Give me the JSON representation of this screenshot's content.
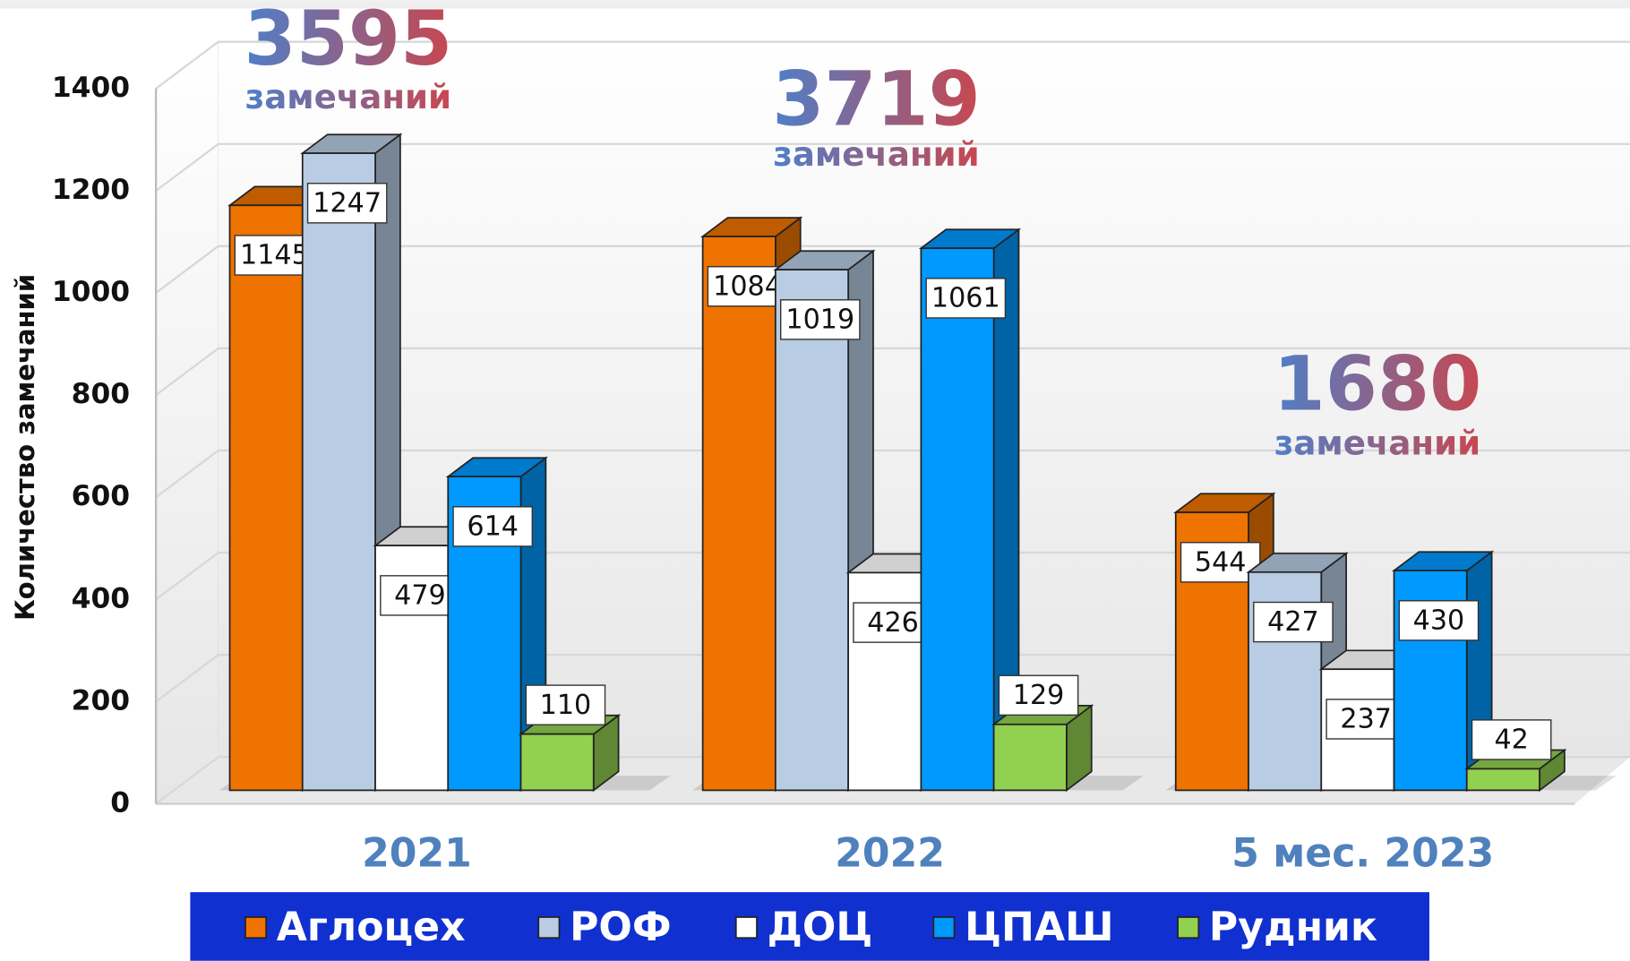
{
  "chart_data": {
    "type": "bar3d",
    "categories": [
      "2021",
      "2022",
      "5 мес. 2023"
    ],
    "series": [
      {
        "name": "Аглоцех",
        "color": "#ef7300",
        "values": [
          1145,
          1084,
          544
        ]
      },
      {
        "name": "РОФ",
        "color": "#b8cce4",
        "values": [
          1247,
          1019,
          427
        ]
      },
      {
        "name": "ДОЦ",
        "color": "#ffffff",
        "values": [
          479,
          426,
          237
        ]
      },
      {
        "name": "ЦПАШ",
        "color": "#0099ff",
        "values": [
          614,
          1061,
          430
        ]
      },
      {
        "name": "Рудник",
        "color": "#92d050",
        "values": [
          110,
          129,
          42
        ]
      }
    ],
    "ylabel": "Количество замечаний",
    "ylim": [
      0,
      1400
    ],
    "yticks": [
      0,
      200,
      400,
      600,
      800,
      1000,
      1200,
      1400
    ],
    "grid": true,
    "totals": [
      3595,
      3719,
      1680
    ],
    "totals_unit": "замечаний",
    "legend": "bottom"
  }
}
